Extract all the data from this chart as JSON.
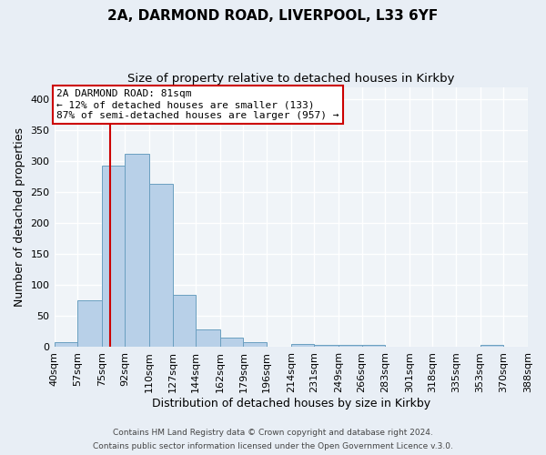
{
  "title1": "2A, DARMOND ROAD, LIVERPOOL, L33 6YF",
  "title2": "Size of property relative to detached houses in Kirkby",
  "xlabel": "Distribution of detached houses by size in Kirkby",
  "ylabel": "Number of detached properties",
  "bin_labels": [
    "40sqm",
    "57sqm",
    "75sqm",
    "92sqm",
    "110sqm",
    "127sqm",
    "144sqm",
    "162sqm",
    "179sqm",
    "196sqm",
    "214sqm",
    "231sqm",
    "249sqm",
    "266sqm",
    "283sqm",
    "301sqm",
    "318sqm",
    "335sqm",
    "353sqm",
    "370sqm",
    "388sqm"
  ],
  "bar_heights": [
    8,
    76,
    293,
    312,
    263,
    85,
    28,
    16,
    8,
    0,
    5,
    3,
    4,
    3,
    0,
    0,
    0,
    0,
    3,
    0
  ],
  "bar_color": "#b8d0e8",
  "bar_edge_color": "#6a9fc0",
  "vline_x": 81,
  "vline_color": "#cc0000",
  "annotation_title": "2A DARMOND ROAD: 81sqm",
  "annotation_line1": "← 12% of detached houses are smaller (133)",
  "annotation_line2": "87% of semi-detached houses are larger (957) →",
  "annotation_box_color": "#ffffff",
  "annotation_box_edge": "#cc0000",
  "ylim": [
    0,
    420
  ],
  "yticks": [
    0,
    50,
    100,
    150,
    200,
    250,
    300,
    350,
    400
  ],
  "footer1": "Contains HM Land Registry data © Crown copyright and database right 2024.",
  "footer2": "Contains public sector information licensed under the Open Government Licence v.3.0.",
  "bg_color": "#e8eef5",
  "plot_bg_color": "#f0f4f8",
  "bin_edges": [
    40,
    57,
    75,
    92,
    110,
    127,
    144,
    162,
    179,
    196,
    214,
    231,
    249,
    266,
    283,
    301,
    318,
    335,
    353,
    370,
    388
  ]
}
